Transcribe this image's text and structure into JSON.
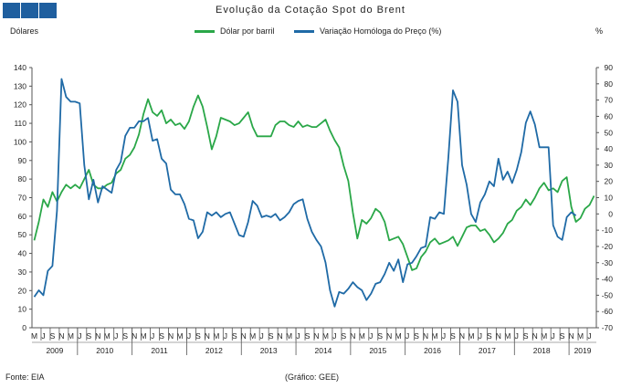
{
  "header": {
    "title": "Evolução da Cotação Spot do Brent",
    "left_unit": "Dólares",
    "right_unit": "%"
  },
  "footer": {
    "source": "Fonte: EIA",
    "credit": "(Gráfico: GEE)"
  },
  "colors": {
    "brand": "#1f5f9f",
    "green": "#2aa748",
    "blue": "#1f6aa6",
    "axis": "#555555"
  },
  "chart_data": {
    "type": "line",
    "title": "Evolução da Cotação Spot do Brent",
    "xlabel": "",
    "ylabel": "Dólares",
    "y2label": "%",
    "ylim": [
      0,
      140
    ],
    "yticks": [
      0,
      10,
      20,
      30,
      40,
      50,
      60,
      70,
      80,
      90,
      100,
      110,
      120,
      130,
      140
    ],
    "y2lim": [
      -70,
      90
    ],
    "y2ticks": [
      -70,
      -60,
      -50,
      -40,
      -30,
      -20,
      -10,
      0,
      10,
      20,
      30,
      40,
      50,
      60,
      70,
      80,
      90
    ],
    "month_tick_labels": [
      "M",
      "J",
      "S",
      "N"
    ],
    "years": [
      "2009",
      "2010",
      "2011",
      "2012",
      "2013",
      "2014",
      "2015",
      "2016",
      "2017",
      "2018",
      "2019"
    ],
    "x_start": "2009-03",
    "grid": false,
    "legend": "top-center",
    "series": [
      {
        "name": "Dólar por barril",
        "axis": "left",
        "values": [
          47,
          57,
          69,
          65,
          73,
          68,
          73,
          77,
          75,
          77,
          75,
          80,
          85,
          77,
          75,
          75,
          77,
          78,
          83,
          85,
          91,
          93,
          97,
          104,
          115,
          123,
          116,
          114,
          117,
          110,
          112,
          109,
          110,
          107,
          111,
          119,
          125,
          119,
          108,
          96,
          103,
          113,
          112,
          111,
          109,
          110,
          113,
          116,
          108,
          103,
          103,
          103,
          103,
          109,
          111,
          111,
          109,
          108,
          111,
          108,
          109,
          108,
          108,
          110,
          112,
          106,
          101,
          97,
          87,
          79,
          62,
          48,
          58,
          56,
          59,
          64,
          62,
          57,
          47,
          48,
          49,
          45,
          38,
          31,
          32,
          38,
          41,
          46,
          48,
          45,
          46,
          47,
          49,
          44,
          49,
          54,
          55,
          55,
          52,
          53,
          50,
          46,
          48,
          51,
          56,
          58,
          63,
          65,
          69,
          66,
          70,
          75,
          78,
          74,
          75,
          73,
          79,
          81,
          65,
          57,
          59,
          64,
          66,
          71
        ]
      },
      {
        "name": "Variação Homóloga do Preço (%)",
        "axis": "right",
        "values": [
          -51,
          -47,
          -50,
          -35,
          -32,
          2,
          83,
          72,
          69,
          69,
          68,
          30,
          9,
          21,
          7,
          17,
          15,
          13,
          27,
          32,
          48,
          53,
          53,
          57,
          57,
          59,
          45,
          46,
          34,
          31,
          15,
          12,
          12,
          6,
          -3,
          -4,
          -15,
          -11,
          1,
          -1,
          1,
          -2,
          0,
          1,
          -6,
          -13,
          -14,
          -5,
          8,
          5,
          -2,
          -1,
          -2,
          0,
          -4,
          -2,
          1,
          6,
          8,
          9,
          -3,
          -11,
          -16,
          -20,
          -30,
          -47,
          -57,
          -48,
          -49,
          -46,
          -42,
          -45,
          -47,
          -53,
          -49,
          -43,
          -42,
          -37,
          -30,
          -35,
          -28,
          -42,
          -31,
          -30,
          -26,
          -21,
          -20,
          -2,
          -3,
          1,
          0,
          35,
          76,
          69,
          30,
          18,
          0,
          -5,
          7,
          12,
          20,
          17,
          34,
          21,
          26,
          19,
          27,
          38,
          56,
          63,
          55,
          41,
          41,
          41,
          -7,
          -14,
          -16,
          -2,
          1,
          -1
        ]
      }
    ]
  }
}
